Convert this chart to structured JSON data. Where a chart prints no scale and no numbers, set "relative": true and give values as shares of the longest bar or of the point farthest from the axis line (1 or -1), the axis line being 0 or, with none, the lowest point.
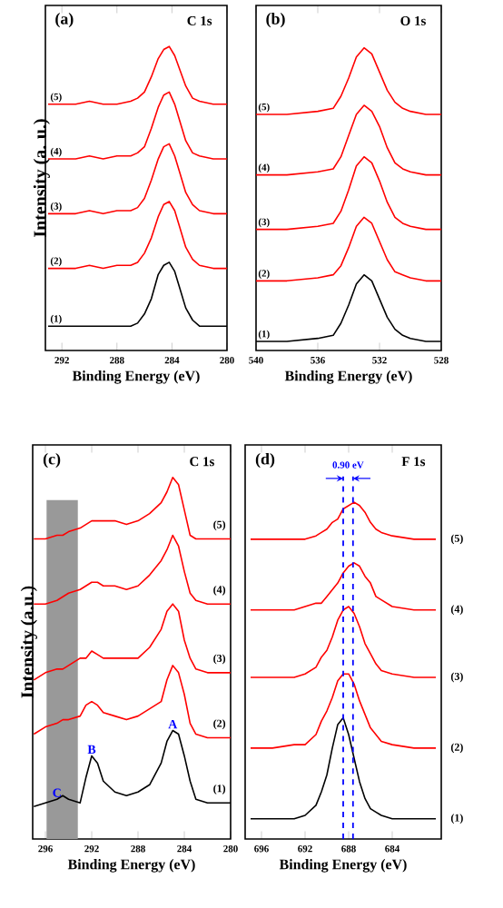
{
  "chart_data": [
    {
      "type": "line",
      "title": "(a)",
      "subtitle": "C 1s",
      "xlabel": "Binding Energy (eV)",
      "ylabel": "Intensity (a. u.)",
      "relative": true,
      "xlim": [
        293.2,
        280
      ],
      "xticks": [
        292,
        288,
        284,
        280
      ],
      "x": [
        293,
        292,
        291,
        290,
        289,
        288,
        287,
        286.5,
        286,
        285.5,
        285,
        284.6,
        284.2,
        283.8,
        283.4,
        283,
        282.5,
        282,
        281,
        280
      ],
      "series": [
        {
          "name": "(1)",
          "color": "#000000",
          "values": [
            0.08,
            0.08,
            0.08,
            0.08,
            0.08,
            0.08,
            0.08,
            0.09,
            0.12,
            0.17,
            0.25,
            0.28,
            0.29,
            0.26,
            0.2,
            0.14,
            0.1,
            0.08,
            0.08,
            0.08
          ]
        },
        {
          "name": "(2)",
          "color": "#ff0000",
          "values": [
            0.27,
            0.27,
            0.27,
            0.28,
            0.27,
            0.28,
            0.28,
            0.29,
            0.32,
            0.37,
            0.44,
            0.48,
            0.49,
            0.46,
            0.4,
            0.34,
            0.3,
            0.28,
            0.27,
            0.27
          ]
        },
        {
          "name": "(3)",
          "color": "#ff0000",
          "values": [
            0.45,
            0.45,
            0.45,
            0.46,
            0.45,
            0.46,
            0.46,
            0.47,
            0.5,
            0.56,
            0.63,
            0.67,
            0.68,
            0.64,
            0.58,
            0.52,
            0.48,
            0.46,
            0.45,
            0.45
          ]
        },
        {
          "name": "(4)",
          "color": "#ff0000",
          "values": [
            0.63,
            0.63,
            0.63,
            0.64,
            0.63,
            0.64,
            0.64,
            0.65,
            0.67,
            0.73,
            0.8,
            0.84,
            0.85,
            0.81,
            0.75,
            0.69,
            0.65,
            0.64,
            0.63,
            0.63
          ]
        },
        {
          "name": "(5)",
          "color": "#ff0000",
          "values": [
            0.81,
            0.81,
            0.81,
            0.82,
            0.81,
            0.81,
            0.82,
            0.83,
            0.85,
            0.9,
            0.96,
            0.99,
            1.0,
            0.97,
            0.92,
            0.87,
            0.83,
            0.82,
            0.81,
            0.81
          ]
        }
      ]
    },
    {
      "type": "line",
      "title": "(b)",
      "subtitle": "O 1s",
      "xlabel": "Binding Energy (eV)",
      "relative": true,
      "xlim": [
        540,
        528
      ],
      "xticks": [
        540,
        536,
        532,
        528
      ],
      "x": [
        540,
        538,
        536,
        535,
        534.5,
        534,
        533.5,
        533,
        532.5,
        532,
        531.5,
        531,
        530.5,
        530,
        529,
        528
      ],
      "series": [
        {
          "name": "(1)",
          "color": "#000000",
          "values": [
            0.03,
            0.03,
            0.04,
            0.05,
            0.09,
            0.15,
            0.22,
            0.25,
            0.23,
            0.17,
            0.11,
            0.07,
            0.05,
            0.04,
            0.03,
            0.03
          ]
        },
        {
          "name": "(2)",
          "color": "#ff0000",
          "values": [
            0.23,
            0.23,
            0.24,
            0.25,
            0.28,
            0.34,
            0.41,
            0.44,
            0.42,
            0.36,
            0.3,
            0.26,
            0.25,
            0.24,
            0.23,
            0.23
          ]
        },
        {
          "name": "(3)",
          "color": "#ff0000",
          "values": [
            0.4,
            0.4,
            0.41,
            0.42,
            0.46,
            0.53,
            0.61,
            0.64,
            0.62,
            0.56,
            0.49,
            0.44,
            0.42,
            0.41,
            0.4,
            0.4
          ]
        },
        {
          "name": "(4)",
          "color": "#ff0000",
          "values": [
            0.58,
            0.58,
            0.59,
            0.6,
            0.64,
            0.71,
            0.78,
            0.81,
            0.79,
            0.74,
            0.67,
            0.62,
            0.6,
            0.59,
            0.58,
            0.58
          ]
        },
        {
          "name": "(5)",
          "color": "#ff0000",
          "values": [
            0.78,
            0.78,
            0.79,
            0.8,
            0.84,
            0.9,
            0.97,
            1.0,
            0.98,
            0.92,
            0.86,
            0.82,
            0.8,
            0.79,
            0.78,
            0.78
          ]
        }
      ]
    },
    {
      "type": "line",
      "title": "(c)",
      "subtitle": "C 1s",
      "xlabel": "Binding Energy (eV)",
      "ylabel": "Intensity (a.u.)",
      "relative": true,
      "xlim": [
        297.1,
        280
      ],
      "xticks": [
        296,
        292,
        288,
        284,
        280
      ],
      "bands": [
        {
          "axis": "x",
          "from": 295.9,
          "to": 293.2,
          "color": "#999999"
        }
      ],
      "annotations": [
        {
          "text": "A",
          "x": 285,
          "y": 0.3
        },
        {
          "text": "B",
          "x": 292,
          "y": 0.23
        },
        {
          "text": "C",
          "x": 295,
          "y": 0.11
        }
      ],
      "x": [
        297,
        296,
        295,
        294.5,
        294,
        293,
        292.5,
        292,
        291.5,
        291,
        290,
        289,
        288,
        287,
        286,
        285.5,
        285,
        284.5,
        284,
        283.5,
        283,
        282,
        281,
        280
      ],
      "series": [
        {
          "name": "(1)",
          "color": "#000000",
          "values": [
            0.09,
            0.1,
            0.11,
            0.12,
            0.11,
            0.1,
            0.17,
            0.23,
            0.21,
            0.16,
            0.13,
            0.12,
            0.13,
            0.15,
            0.21,
            0.27,
            0.3,
            0.29,
            0.23,
            0.16,
            0.11,
            0.1,
            0.1,
            0.1
          ]
        },
        {
          "name": "(2)",
          "color": "#ff0000",
          "values": [
            0.29,
            0.31,
            0.32,
            0.33,
            0.33,
            0.34,
            0.37,
            0.38,
            0.37,
            0.35,
            0.34,
            0.33,
            0.34,
            0.36,
            0.38,
            0.44,
            0.48,
            0.46,
            0.4,
            0.32,
            0.29,
            0.28,
            0.28,
            0.28
          ]
        },
        {
          "name": "(3)",
          "color": "#ff0000",
          "values": [
            0.44,
            0.46,
            0.47,
            0.47,
            0.48,
            0.5,
            0.5,
            0.52,
            0.51,
            0.5,
            0.5,
            0.5,
            0.5,
            0.53,
            0.58,
            0.63,
            0.65,
            0.63,
            0.55,
            0.5,
            0.47,
            0.46,
            0.46,
            0.46
          ]
        },
        {
          "name": "(4)",
          "color": "#ff0000",
          "values": [
            0.65,
            0.65,
            0.66,
            0.67,
            0.68,
            0.69,
            0.7,
            0.71,
            0.71,
            0.7,
            0.7,
            0.69,
            0.7,
            0.73,
            0.77,
            0.8,
            0.84,
            0.81,
            0.74,
            0.68,
            0.66,
            0.65,
            0.65,
            0.65
          ]
        },
        {
          "name": "(5)",
          "color": "#ff0000",
          "values": [
            0.83,
            0.83,
            0.84,
            0.84,
            0.85,
            0.86,
            0.87,
            0.88,
            0.88,
            0.88,
            0.88,
            0.87,
            0.88,
            0.9,
            0.93,
            0.96,
            1.0,
            0.98,
            0.91,
            0.84,
            0.83,
            0.83,
            0.83,
            0.83
          ]
        }
      ]
    },
    {
      "type": "line",
      "title": "(d)",
      "subtitle": "F 1s",
      "xlabel": "Binding Energy (eV)",
      "relative": true,
      "xlim": [
        697.5,
        679.5
      ],
      "xticks": [
        696,
        692,
        688,
        684
      ],
      "ref_lines": [
        {
          "axis": "x",
          "value": 688.5,
          "color": "#0000ff",
          "line_style": "dashed"
        },
        {
          "axis": "x",
          "value": 687.6,
          "color": "#0000ff",
          "line_style": "dashed"
        }
      ],
      "annotations": [
        "0.90 eV"
      ],
      "x": [
        697,
        695,
        693,
        692,
        691,
        690.5,
        690,
        689.5,
        689,
        688.5,
        688,
        687.5,
        687,
        686.5,
        686,
        685.5,
        685,
        684,
        682,
        680
      ],
      "series": [
        {
          "name": "(1)",
          "color": "#000000",
          "values": [
            0.06,
            0.06,
            0.06,
            0.07,
            0.1,
            0.14,
            0.19,
            0.27,
            0.34,
            0.36,
            0.31,
            0.24,
            0.17,
            0.12,
            0.09,
            0.08,
            0.07,
            0.06,
            0.06,
            0.06
          ]
        },
        {
          "name": "(2)",
          "color": "#ff0000",
          "values": [
            0.27,
            0.27,
            0.28,
            0.28,
            0.31,
            0.35,
            0.38,
            0.42,
            0.47,
            0.49,
            0.49,
            0.46,
            0.41,
            0.37,
            0.33,
            0.31,
            0.29,
            0.28,
            0.27,
            0.27
          ]
        },
        {
          "name": "(3)",
          "color": "#ff0000",
          "values": [
            0.48,
            0.48,
            0.48,
            0.49,
            0.51,
            0.54,
            0.56,
            0.6,
            0.65,
            0.68,
            0.69,
            0.67,
            0.63,
            0.58,
            0.55,
            0.52,
            0.5,
            0.49,
            0.48,
            0.48
          ]
        },
        {
          "name": "(4)",
          "color": "#ff0000",
          "values": [
            0.68,
            0.68,
            0.68,
            0.69,
            0.7,
            0.7,
            0.72,
            0.74,
            0.76,
            0.79,
            0.81,
            0.82,
            0.81,
            0.78,
            0.76,
            0.72,
            0.71,
            0.69,
            0.68,
            0.68
          ]
        },
        {
          "name": "(5)",
          "color": "#ff0000",
          "values": [
            0.89,
            0.89,
            0.89,
            0.89,
            0.9,
            0.91,
            0.92,
            0.94,
            0.95,
            0.98,
            0.99,
            1.0,
            0.99,
            0.97,
            0.94,
            0.92,
            0.91,
            0.9,
            0.89,
            0.89
          ]
        }
      ]
    }
  ]
}
